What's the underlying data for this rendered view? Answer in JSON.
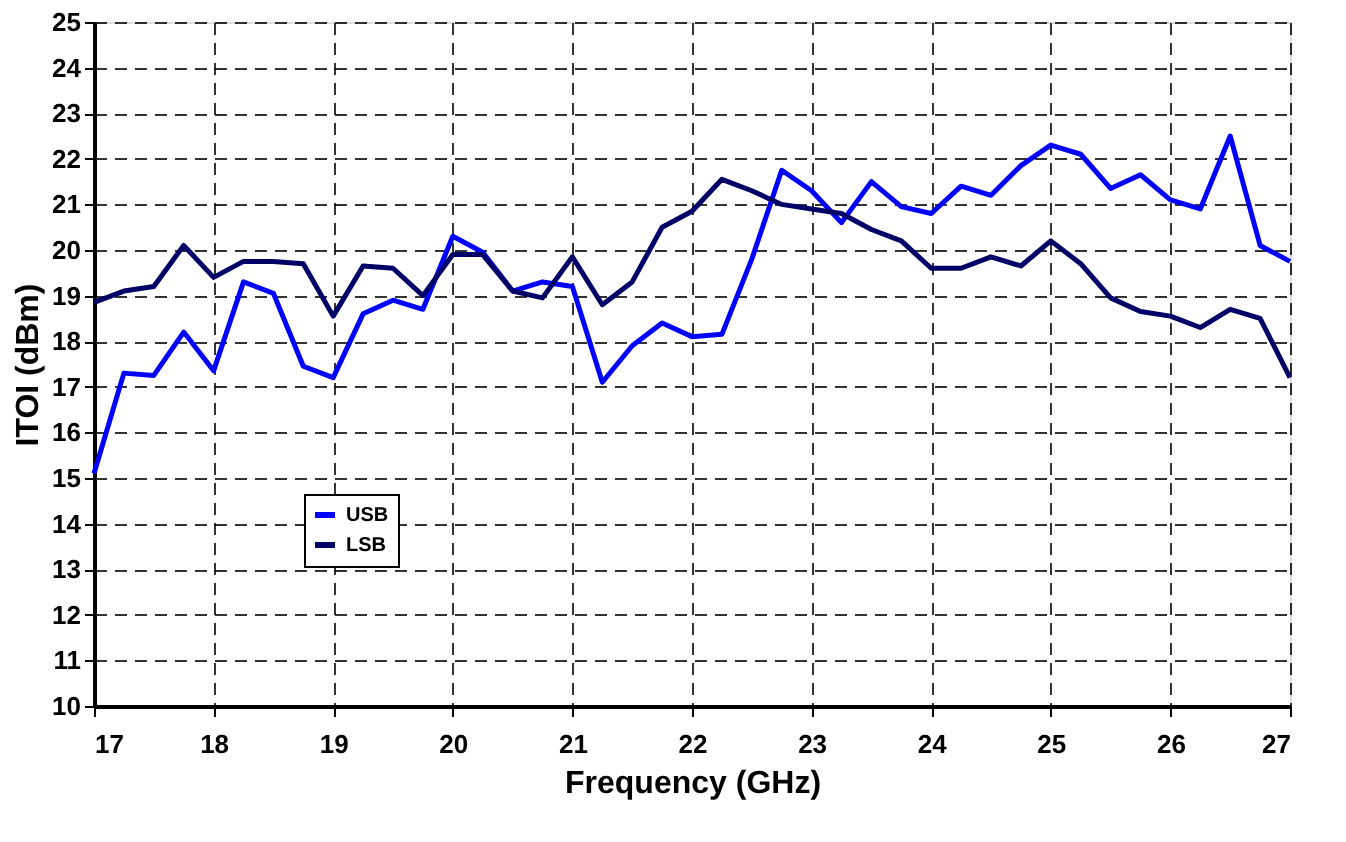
{
  "chart_data": {
    "type": "line",
    "xlabel": "Frequency (GHz)",
    "ylabel": "ITOI (dBm)",
    "x": [
      17,
      17.25,
      17.5,
      17.75,
      18,
      18.25,
      18.5,
      18.75,
      19,
      19.25,
      19.5,
      19.75,
      20,
      20.25,
      20.5,
      20.75,
      21,
      21.25,
      21.5,
      21.75,
      22,
      22.25,
      22.5,
      22.75,
      23,
      23.25,
      23.5,
      23.75,
      24,
      24.25,
      24.5,
      24.75,
      25,
      25.25,
      25.5,
      25.75,
      26,
      26.25,
      26.5,
      26.75,
      27
    ],
    "series": [
      {
        "name": "USB",
        "color": "#0000ff",
        "values": [
          15.1,
          17.3,
          17.25,
          18.2,
          17.35,
          19.3,
          19.05,
          17.45,
          17.2,
          18.6,
          18.9,
          18.7,
          20.3,
          19.95,
          19.1,
          19.3,
          19.2,
          17.1,
          17.9,
          18.4,
          18.1,
          18.15,
          19.8,
          21.75,
          21.3,
          20.6,
          21.5,
          20.95,
          20.8,
          21.4,
          21.2,
          21.85,
          22.3,
          22.1,
          21.35,
          21.65,
          21.1,
          20.9,
          22.5,
          20.1,
          19.75
        ]
      },
      {
        "name": "LSB",
        "color": "#000066",
        "values": [
          18.85,
          19.1,
          19.2,
          20.1,
          19.4,
          19.75,
          19.75,
          19.7,
          18.55,
          19.65,
          19.6,
          19.0,
          19.9,
          19.9,
          19.1,
          18.95,
          19.85,
          18.8,
          19.3,
          20.5,
          20.85,
          21.55,
          21.3,
          21.0,
          20.9,
          20.8,
          20.45,
          20.2,
          19.6,
          19.6,
          19.85,
          19.65,
          20.2,
          19.7,
          18.95,
          18.65,
          18.55,
          18.3,
          18.7,
          18.5,
          17.2
        ]
      }
    ],
    "xlim": [
      17,
      27
    ],
    "xticks": [
      17,
      18,
      19,
      20,
      21,
      22,
      23,
      24,
      25,
      26,
      27
    ],
    "ylim": [
      10,
      25
    ],
    "yticks": [
      10,
      11,
      12,
      13,
      14,
      15,
      16,
      17,
      18,
      19,
      20,
      21,
      22,
      23,
      24,
      25
    ],
    "grid": true,
    "legend": "left",
    "line_style": "solid",
    "marker": "none"
  }
}
